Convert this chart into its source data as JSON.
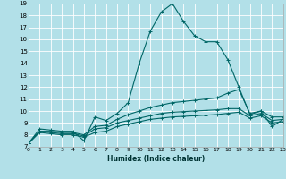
{
  "title": "",
  "xlabel": "Humidex (Indice chaleur)",
  "ylabel": "",
  "bg_color": "#b2e0e8",
  "grid_color": "#ffffff",
  "line_color": "#006666",
  "ylim": [
    7,
    19
  ],
  "xlim": [
    0,
    23
  ],
  "yticks": [
    7,
    8,
    9,
    10,
    11,
    12,
    13,
    14,
    15,
    16,
    17,
    18,
    19
  ],
  "xticks": [
    0,
    1,
    2,
    3,
    4,
    5,
    6,
    7,
    8,
    9,
    10,
    11,
    12,
    13,
    14,
    15,
    16,
    17,
    18,
    19,
    20,
    21,
    22,
    23
  ],
  "xtick_labels": [
    "0",
    "1",
    "2",
    "3",
    "4",
    "5",
    "6",
    "7",
    "8",
    "9",
    "10",
    "11",
    "12",
    "13",
    "14",
    "15",
    "16",
    "17",
    "18",
    "19",
    "20",
    "21",
    "22",
    "23"
  ],
  "lines": [
    {
      "x": [
        0,
        1,
        2,
        3,
        4,
        5,
        6,
        7,
        8,
        9,
        10,
        11,
        12,
        13,
        14,
        15,
        16,
        17,
        18,
        19,
        20,
        21,
        22,
        23
      ],
      "y": [
        7.3,
        8.5,
        8.4,
        8.3,
        8.3,
        7.5,
        9.5,
        9.2,
        9.8,
        10.7,
        14.0,
        16.7,
        18.3,
        19.0,
        17.5,
        16.3,
        15.8,
        15.8,
        14.3,
        12.0,
        9.7,
        10.0,
        8.7,
        9.3
      ]
    },
    {
      "x": [
        0,
        1,
        2,
        3,
        4,
        5,
        6,
        7,
        8,
        9,
        10,
        11,
        12,
        13,
        14,
        15,
        16,
        17,
        18,
        19,
        20,
        21,
        22,
        23
      ],
      "y": [
        7.3,
        8.3,
        8.3,
        8.2,
        8.2,
        8.0,
        8.7,
        8.8,
        9.3,
        9.7,
        10.0,
        10.3,
        10.5,
        10.7,
        10.8,
        10.9,
        11.0,
        11.1,
        11.5,
        11.8,
        9.8,
        10.0,
        9.5,
        9.5
      ]
    },
    {
      "x": [
        0,
        1,
        2,
        3,
        4,
        5,
        6,
        7,
        8,
        9,
        10,
        11,
        12,
        13,
        14,
        15,
        16,
        17,
        18,
        19,
        20,
        21,
        22,
        23
      ],
      "y": [
        7.3,
        8.3,
        8.2,
        8.1,
        8.1,
        7.9,
        8.5,
        8.6,
        9.0,
        9.2,
        9.4,
        9.6,
        9.8,
        9.9,
        9.95,
        10.0,
        10.05,
        10.1,
        10.2,
        10.2,
        9.6,
        9.8,
        9.2,
        9.3
      ]
    },
    {
      "x": [
        0,
        1,
        2,
        3,
        4,
        5,
        6,
        7,
        8,
        9,
        10,
        11,
        12,
        13,
        14,
        15,
        16,
        17,
        18,
        19,
        20,
        21,
        22,
        23
      ],
      "y": [
        7.3,
        8.2,
        8.1,
        8.0,
        8.0,
        7.8,
        8.2,
        8.3,
        8.7,
        8.9,
        9.1,
        9.3,
        9.4,
        9.5,
        9.55,
        9.6,
        9.65,
        9.7,
        9.8,
        9.9,
        9.4,
        9.6,
        9.0,
        9.1
      ]
    }
  ]
}
